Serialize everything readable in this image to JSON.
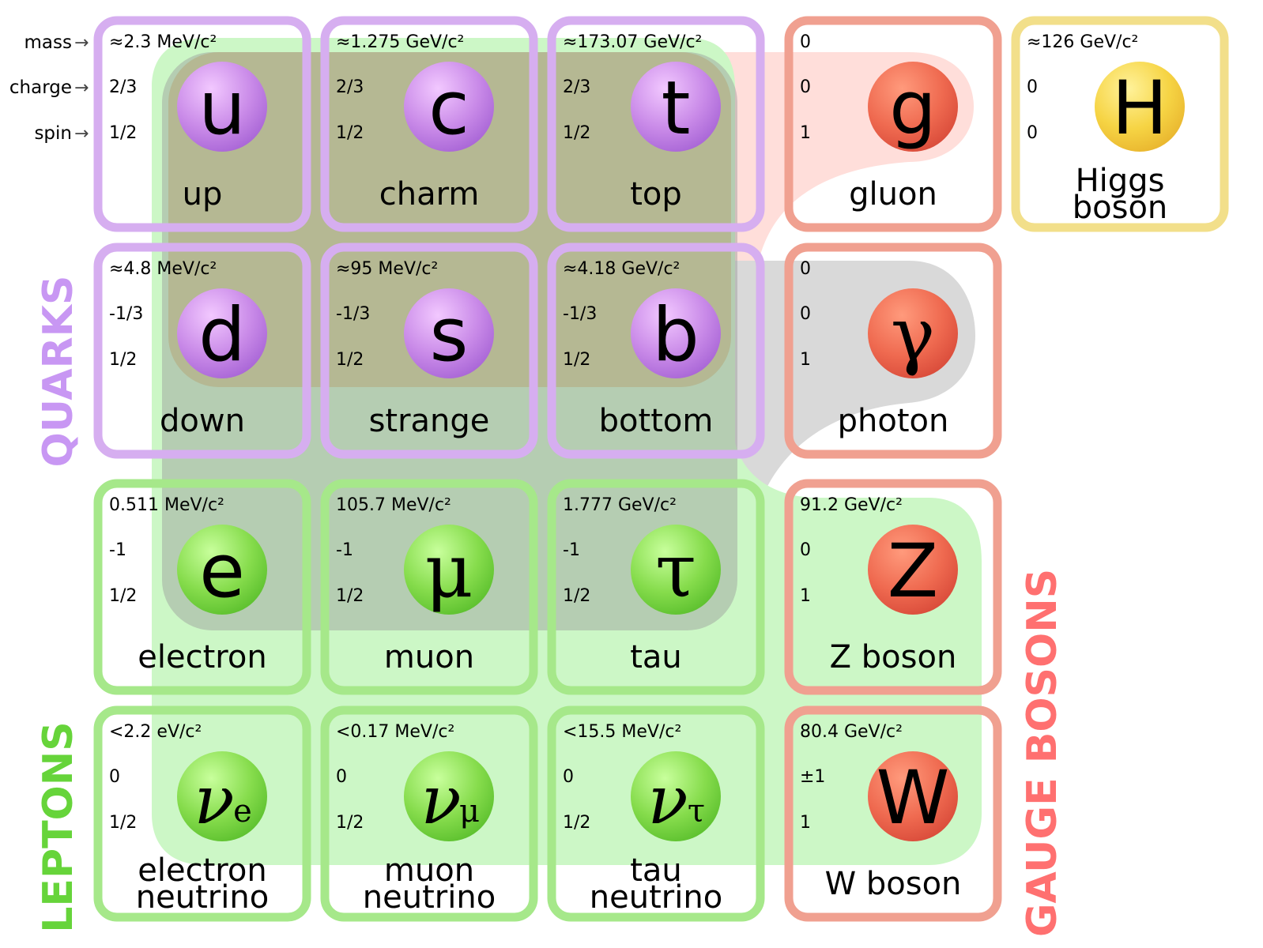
{
  "legend": {
    "mass": "mass",
    "charge": "charge",
    "spin": "spin",
    "arrow": "→"
  },
  "group_labels": {
    "quarks": "QUARKS",
    "leptons": "LEPTONS",
    "gauge_bosons": "GAUGE BOSONS"
  },
  "colors": {
    "quark_border": "#d6aef0",
    "quark_ball": "#c47ee8",
    "lepton_border": "#a6e88a",
    "lepton_ball": "#7fd84a",
    "boson_border": "#f0a090",
    "boson_ball": "#ec6a52",
    "higgs_border": "#f2df8a",
    "higgs_ball": "#f3cc36",
    "quarks_label": "#c897f3",
    "leptons_label": "#66d43a",
    "gauge_label": "#ff7070",
    "green_region": "#ccf7c6",
    "gray_region": "#9a9a9a",
    "olive_region": "#b4a87a",
    "red_region": "#ffd8d4",
    "gray_light_region": "#d9d9d9"
  },
  "particles": [
    {
      "id": "up",
      "mass": "≈2.3 MeV/c²",
      "charge": "2/3",
      "spin": "1/2",
      "symbol": "u",
      "sub": "",
      "name": [
        "up"
      ],
      "family": "quark"
    },
    {
      "id": "charm",
      "mass": "≈1.275 GeV/c²",
      "charge": "2/3",
      "spin": "1/2",
      "symbol": "c",
      "sub": "",
      "name": [
        "charm"
      ],
      "family": "quark"
    },
    {
      "id": "top",
      "mass": "≈173.07 GeV/c²",
      "charge": "2/3",
      "spin": "1/2",
      "symbol": "t",
      "sub": "",
      "name": [
        "top"
      ],
      "family": "quark"
    },
    {
      "id": "gluon",
      "mass": "0",
      "charge": "0",
      "spin": "1",
      "symbol": "g",
      "sub": "",
      "name": [
        "gluon"
      ],
      "family": "boson"
    },
    {
      "id": "higgs",
      "mass": "≈126 GeV/c²",
      "charge": "0",
      "spin": "0",
      "symbol": "H",
      "sub": "",
      "name": [
        "Higgs",
        "boson"
      ],
      "family": "higgs"
    },
    {
      "id": "down",
      "mass": "≈4.8 MeV/c²",
      "charge": "-1/3",
      "spin": "1/2",
      "symbol": "d",
      "sub": "",
      "name": [
        "down"
      ],
      "family": "quark"
    },
    {
      "id": "strange",
      "mass": "≈95 MeV/c²",
      "charge": "-1/3",
      "spin": "1/2",
      "symbol": "s",
      "sub": "",
      "name": [
        "strange"
      ],
      "family": "quark"
    },
    {
      "id": "bottom",
      "mass": "≈4.18 GeV/c²",
      "charge": "-1/3",
      "spin": "1/2",
      "symbol": "b",
      "sub": "",
      "name": [
        "bottom"
      ],
      "family": "quark"
    },
    {
      "id": "photon",
      "mass": "0",
      "charge": "0",
      "spin": "1",
      "symbol": "γ",
      "sub": "",
      "name": [
        "photon"
      ],
      "family": "boson"
    },
    {
      "id": "electron",
      "mass": "0.511 MeV/c²",
      "charge": "-1",
      "spin": "1/2",
      "symbol": "e",
      "sub": "",
      "name": [
        "electron"
      ],
      "family": "lepton"
    },
    {
      "id": "muon",
      "mass": "105.7 MeV/c²",
      "charge": "-1",
      "spin": "1/2",
      "symbol": "μ",
      "sub": "",
      "name": [
        "muon"
      ],
      "family": "lepton"
    },
    {
      "id": "tau",
      "mass": "1.777 GeV/c²",
      "charge": "-1",
      "spin": "1/2",
      "symbol": "τ",
      "sub": "",
      "name": [
        "tau"
      ],
      "family": "lepton"
    },
    {
      "id": "z-boson",
      "mass": "91.2 GeV/c²",
      "charge": "0",
      "spin": "1",
      "symbol": "Z",
      "sub": "",
      "name": [
        "Z boson"
      ],
      "family": "boson"
    },
    {
      "id": "electron-neutrino",
      "mass": "<2.2 eV/c²",
      "charge": "0",
      "spin": "1/2",
      "symbol": "ν",
      "sub": "e",
      "name": [
        "electron",
        "neutrino"
      ],
      "family": "lepton"
    },
    {
      "id": "muon-neutrino",
      "mass": "<0.17 MeV/c²",
      "charge": "0",
      "spin": "1/2",
      "symbol": "ν",
      "sub": "μ",
      "name": [
        "muon",
        "neutrino"
      ],
      "family": "lepton"
    },
    {
      "id": "tau-neutrino",
      "mass": "<15.5 MeV/c²",
      "charge": "0",
      "spin": "1/2",
      "symbol": "ν",
      "sub": "τ",
      "name": [
        "tau",
        "neutrino"
      ],
      "family": "lepton"
    },
    {
      "id": "w-boson",
      "mass": "80.4 GeV/c²",
      "charge": "±1",
      "spin": "1",
      "symbol": "W",
      "sub": "",
      "name": [
        "W boson"
      ],
      "family": "boson"
    }
  ]
}
